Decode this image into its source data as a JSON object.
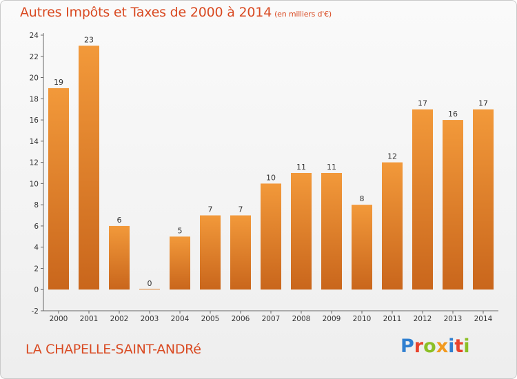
{
  "title": "Autres Impôts et Taxes de 2000 à 2014",
  "title_unit": "(en milliers d'€)",
  "commune": "LA CHAPELLE-SAINT-ANDRé",
  "brand": {
    "text": "Proxiti",
    "letter_colors": [
      "#2f7fd0",
      "#e8432c",
      "#8cbf26",
      "#f29a1f",
      "#2f7fd0",
      "#e8432c",
      "#8cbf26"
    ]
  },
  "colors": {
    "bar": "#f2993a",
    "bar_dark": "#c9661c",
    "text": "#d94a22"
  },
  "chart_data": {
    "type": "bar",
    "title": "Autres Impôts et Taxes de 2000 à 2014",
    "ylabel_unit": "(en milliers d'€)",
    "categories": [
      "2000",
      "2001",
      "2002",
      "2003",
      "2004",
      "2005",
      "2006",
      "2007",
      "2008",
      "2009",
      "2010",
      "2011",
      "2012",
      "2013",
      "2014"
    ],
    "values": [
      19,
      23,
      6,
      0,
      5,
      7,
      7,
      10,
      11,
      11,
      8,
      12,
      17,
      16,
      17
    ],
    "ylim": [
      -2,
      24
    ],
    "yticks": [
      -2,
      0,
      2,
      4,
      6,
      8,
      10,
      12,
      14,
      16,
      18,
      20,
      22,
      24
    ],
    "grid": false,
    "legend": "none"
  }
}
